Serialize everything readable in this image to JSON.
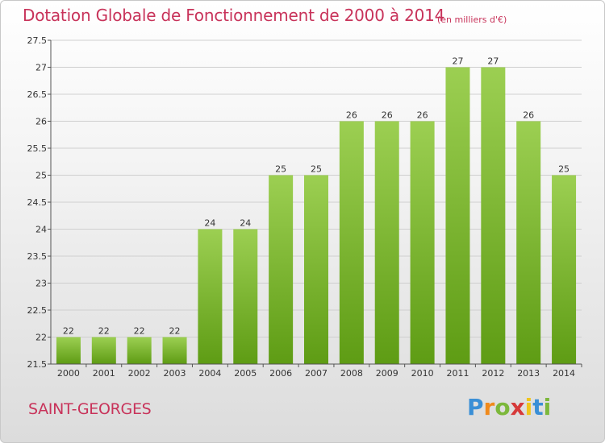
{
  "title": "Dotation Globale de Fonctionnement de 2000 à 2014",
  "subtitle": "(en milliers d'€)",
  "commune": "SAINT-GEORGES",
  "logo": {
    "letters": [
      "P",
      "r",
      "o",
      "x",
      "i",
      "t",
      "i"
    ],
    "colors": [
      "#3a8fd6",
      "#f08a1c",
      "#7cb83b",
      "#d63a3a",
      "#f0c51c",
      "#3a8fd6",
      "#7cb83b"
    ]
  },
  "colors": {
    "bar_top": "#9ccf52",
    "bar_bottom": "#5e9c14",
    "text_accent": "#c8335a",
    "grid": "#cfcfcf"
  },
  "chart_data": {
    "type": "bar",
    "title": "Dotation Globale de Fonctionnement de 2000 à 2014",
    "subtitle": "(en milliers d'€)",
    "xlabel": "",
    "ylabel": "",
    "categories": [
      "2000",
      "2001",
      "2002",
      "2003",
      "2004",
      "2005",
      "2006",
      "2007",
      "2008",
      "2009",
      "2010",
      "2011",
      "2012",
      "2013",
      "2014"
    ],
    "values": [
      22,
      22,
      22,
      22,
      24,
      24,
      25,
      25,
      26,
      26,
      26,
      27,
      27,
      26,
      25
    ],
    "ylim": [
      21.5,
      27.5
    ],
    "yticks": [
      21.5,
      22,
      22.5,
      23,
      23.5,
      24,
      24.5,
      25,
      25.5,
      26,
      26.5,
      27,
      27.5
    ],
    "ytick_labels": [
      "21.5",
      "22",
      "22.5",
      "23",
      "23.5",
      "24",
      "24.5",
      "25",
      "25.5",
      "26",
      "26.5",
      "27",
      "27.5"
    ],
    "grid": true,
    "legend": "none"
  }
}
